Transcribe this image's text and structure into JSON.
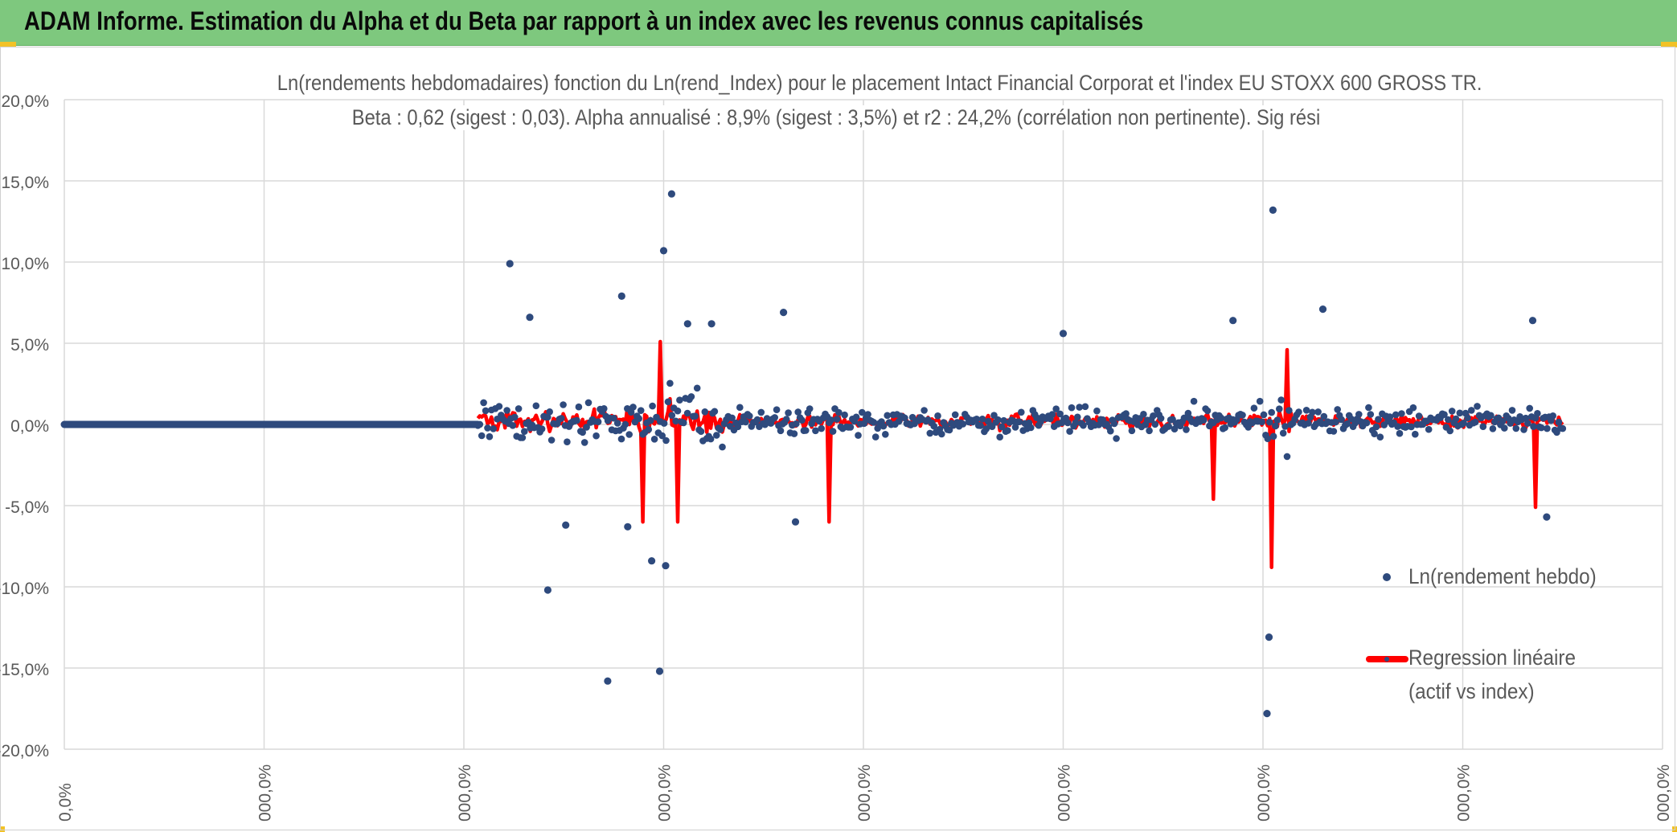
{
  "header": {
    "title": "ADAM Informe. Estimation du Alpha et du Beta par rapport à un index avec les revenus connus capitalisés"
  },
  "colors": {
    "banner": "#7ec87e",
    "scatter": "#2e4a7d",
    "regression": "#ff0000",
    "grid": "#d9d9d9",
    "text": "#595959"
  },
  "chart_data": {
    "type": "scatter",
    "title": "Ln(rendements hebdomadaires) fonction du Ln(rend_Index) pour le placement Intact Financial Corporat et l'index EU STOXX 600 GROSS TR.",
    "subtitle": "Beta : 0,62 (sigest : 0,03). Alpha annualisé : 8,9% (sigest : 3,5%) et r2 : 24,2% (corrélation non pertinente). Sig rési",
    "y_tick_labels": [
      "20,0%",
      "15,0%",
      "10,0%",
      "5,0%",
      "0,0%",
      "-5,0%",
      "-10,0%",
      "-15,0%",
      "-20,0%"
    ],
    "x_tick_labels": [
      "0,0%",
      "000,0%",
      "000,0%",
      "000,0%",
      "000,0%",
      "000,0%",
      "000,0%",
      "000,0%",
      "000,0%"
    ],
    "ylim": [
      -0.2,
      0.2
    ],
    "x_categories": 8,
    "grid": true,
    "legend_position": "right",
    "zero_segment": {
      "x_start": 0.0,
      "x_end": 2.07,
      "y": 0.0
    },
    "active_range": {
      "x_start": 2.07,
      "x_end": 7.5
    },
    "series": [
      {
        "name": "Ln(rendement hebdo)",
        "kind": "scatter",
        "marker": "dot"
      },
      {
        "name": "Regression linéaire (actif vs index)",
        "kind": "line"
      }
    ],
    "legend": {
      "scatter_label": "Ln(rendement hebdo)",
      "line_label_1": "Regression linéaire",
      "line_label_2": "(actif vs index)"
    },
    "notable_points": [
      {
        "x": 2.23,
        "y": 0.099
      },
      {
        "x": 2.33,
        "y": 0.066
      },
      {
        "x": 2.42,
        "y": -0.102
      },
      {
        "x": 2.51,
        "y": -0.062
      },
      {
        "x": 2.72,
        "y": -0.158
      },
      {
        "x": 2.79,
        "y": 0.079
      },
      {
        "x": 2.82,
        "y": -0.063
      },
      {
        "x": 2.94,
        "y": -0.084
      },
      {
        "x": 3.01,
        "y": -0.087
      },
      {
        "x": 3.0,
        "y": 0.107
      },
      {
        "x": 3.04,
        "y": 0.142
      },
      {
        "x": 2.98,
        "y": -0.152
      },
      {
        "x": 3.12,
        "y": 0.062
      },
      {
        "x": 3.24,
        "y": 0.062
      },
      {
        "x": 3.6,
        "y": 0.069
      },
      {
        "x": 3.66,
        "y": -0.06
      },
      {
        "x": 5.0,
        "y": 0.056
      },
      {
        "x": 5.85,
        "y": 0.064
      },
      {
        "x": 6.05,
        "y": 0.132
      },
      {
        "x": 6.03,
        "y": -0.131
      },
      {
        "x": 6.02,
        "y": -0.178
      },
      {
        "x": 6.3,
        "y": 0.071
      },
      {
        "x": 7.35,
        "y": 0.064
      },
      {
        "x": 7.42,
        "y": -0.057
      }
    ],
    "regression_spikes": [
      {
        "x": 2.98,
        "y": 0.051
      },
      {
        "x": 3.07,
        "y": -0.06
      },
      {
        "x": 2.9,
        "y": -0.06
      },
      {
        "x": 3.83,
        "y": -0.06
      },
      {
        "x": 5.75,
        "y": -0.046
      },
      {
        "x": 6.04,
        "y": -0.088
      },
      {
        "x": 6.12,
        "y": 0.046
      },
      {
        "x": 7.36,
        "y": -0.051
      }
    ]
  }
}
